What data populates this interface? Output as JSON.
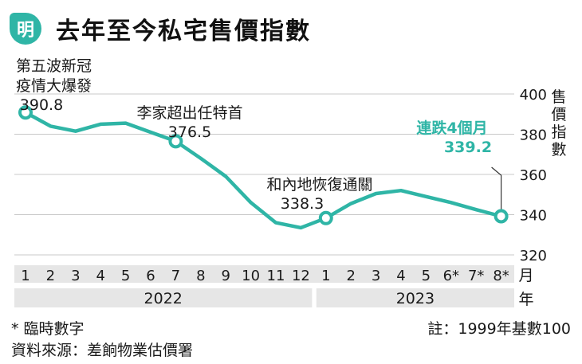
{
  "header": {
    "logo_char": "明",
    "title": "去年至今私宅售價指數"
  },
  "chart_data": {
    "type": "line",
    "x": [
      "2022-01",
      "2022-02",
      "2022-03",
      "2022-04",
      "2022-05",
      "2022-06",
      "2022-07",
      "2022-08",
      "2022-09",
      "2022-10",
      "2022-11",
      "2022-12",
      "2023-01",
      "2023-02",
      "2023-03",
      "2023-04",
      "2023-05",
      "2023-06",
      "2023-07",
      "2023-08"
    ],
    "tick_labels": [
      "1",
      "2",
      "3",
      "4",
      "5",
      "6",
      "7",
      "8",
      "9",
      "10",
      "11",
      "12",
      "1",
      "2",
      "3",
      "4",
      "5",
      "6*",
      "7*",
      "8*"
    ],
    "values": [
      390.8,
      384,
      381.5,
      385,
      385.5,
      381,
      376.5,
      368,
      359,
      346,
      336,
      333.5,
      338.3,
      345.5,
      350.5,
      352,
      349,
      346,
      342.5,
      339.2
    ],
    "ylim": [
      320,
      400
    ],
    "yticks": [
      320,
      340,
      360,
      380,
      400
    ],
    "ylabel": "售價指數",
    "xunit": "月",
    "year_unit": "年",
    "years": [
      {
        "label": "2022",
        "from": 0,
        "to": 11
      },
      {
        "label": "2023",
        "from": 12,
        "to": 19
      }
    ],
    "grid": true,
    "line_color": "#2fb5a6",
    "highlight_color": "#2fb5a6",
    "markers": [
      0,
      6,
      12,
      19
    ],
    "annotations": [
      {
        "index": 0,
        "lines": [
          "第五波新冠",
          "疫情大爆發"
        ],
        "value": "390.8",
        "highlight": false
      },
      {
        "index": 6,
        "lines": [
          "李家超出任特首"
        ],
        "value": "376.5",
        "highlight": false
      },
      {
        "index": 12,
        "lines": [
          "和內地恢復通關"
        ],
        "value": "338.3",
        "highlight": false
      },
      {
        "index": 19,
        "lines": [
          "連跌4個月"
        ],
        "value": "339.2",
        "highlight": true
      }
    ]
  },
  "footer": {
    "note": "* 臨時數字",
    "source": "資料來源：差餉物業估價署",
    "remark": "註：1999年基數100"
  }
}
